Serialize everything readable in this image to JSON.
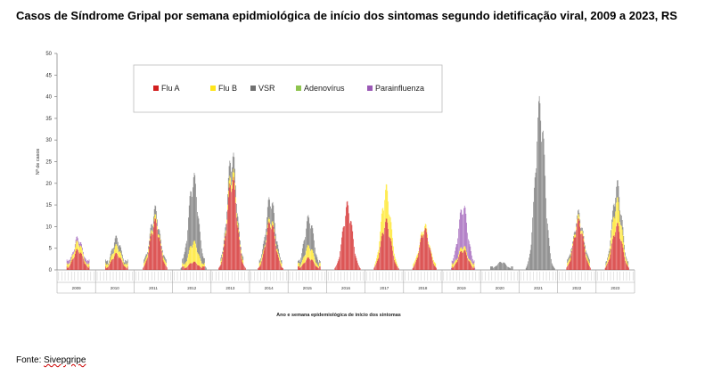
{
  "title": "Casos de Síndrome Gripal por semana epidmiológica de início dos sintomas segundo idetificação viral, 2009 a 2023, RS",
  "source_label": "Fonte:",
  "source_name": "Sivepgripe",
  "chart_data": {
    "type": "bar",
    "stacked": true,
    "ylabel": "Nº de casos",
    "xlabel": "Ano e semana epidemiológica de início dos sintomas",
    "ylim": [
      0,
      50
    ],
    "yticks": [
      0,
      5,
      10,
      15,
      20,
      25,
      30,
      35,
      40,
      45,
      50
    ],
    "grid": false,
    "legend_position": "top-left, inside plot",
    "legend": [
      {
        "name": "Flu A",
        "color": "#d21f1f"
      },
      {
        "name": "Flu B",
        "color": "#ffe51a"
      },
      {
        "name": "VSR",
        "color": "#707070"
      },
      {
        "name": "Adenovírus",
        "color": "#8ec44e"
      },
      {
        "name": "Parainfluenza",
        "color": "#9b59b6"
      }
    ],
    "years": [
      "2009",
      "2010",
      "2011",
      "2012",
      "2013",
      "2014",
      "2015",
      "2016",
      "2017",
      "2018",
      "2019",
      "2020",
      "2021",
      "2022",
      "2023"
    ],
    "peaks_approx": [
      {
        "year": "2009",
        "flu_a": 5,
        "flu_b": 2,
        "vsr": 0,
        "adenovirus": 0,
        "parainfluenza": 1
      },
      {
        "year": "2010",
        "flu_a": 4,
        "flu_b": 2,
        "vsr": 2,
        "adenovirus": 0,
        "parainfluenza": 0
      },
      {
        "year": "2011",
        "flu_a": 12,
        "flu_b": 1,
        "vsr": 2,
        "adenovirus": 0,
        "parainfluenza": 0
      },
      {
        "year": "2012",
        "flu_a": 2,
        "flu_b": 5,
        "vsr": 16,
        "adenovirus": 0,
        "parainfluenza": 0
      },
      {
        "year": "2013",
        "flu_a": 23,
        "flu_b": 2,
        "vsr": 4,
        "adenovirus": 0,
        "parainfluenza": 0
      },
      {
        "year": "2014",
        "flu_a": 12,
        "flu_b": 1,
        "vsr": 5,
        "adenovirus": 0,
        "parainfluenza": 0
      },
      {
        "year": "2015",
        "flu_a": 3,
        "flu_b": 3,
        "vsr": 7,
        "adenovirus": 0,
        "parainfluenza": 0
      },
      {
        "year": "2016",
        "flu_a": 16,
        "flu_b": 0,
        "vsr": 0,
        "adenovirus": 0,
        "parainfluenza": 0
      },
      {
        "year": "2017",
        "flu_a": 12,
        "flu_b": 8,
        "vsr": 0,
        "adenovirus": 0,
        "parainfluenza": 0
      },
      {
        "year": "2018",
        "flu_a": 10,
        "flu_b": 1,
        "vsr": 0,
        "adenovirus": 0,
        "parainfluenza": 0
      },
      {
        "year": "2019",
        "flu_a": 5,
        "flu_b": 1,
        "vsr": 0,
        "adenovirus": 0,
        "parainfluenza": 10
      },
      {
        "year": "2020",
        "flu_a": 0,
        "flu_b": 0,
        "vsr": 2,
        "adenovirus": 0,
        "parainfluenza": 0
      },
      {
        "year": "2021",
        "flu_a": 0,
        "flu_b": 0,
        "vsr": 41,
        "adenovirus": 0,
        "parainfluenza": 0
      },
      {
        "year": "2022",
        "flu_a": 12,
        "flu_b": 1,
        "vsr": 1,
        "adenovirus": 0,
        "parainfluenza": 0
      },
      {
        "year": "2023",
        "flu_a": 11,
        "flu_b": 6,
        "vsr": 4,
        "adenovirus": 0,
        "parainfluenza": 0
      }
    ]
  }
}
